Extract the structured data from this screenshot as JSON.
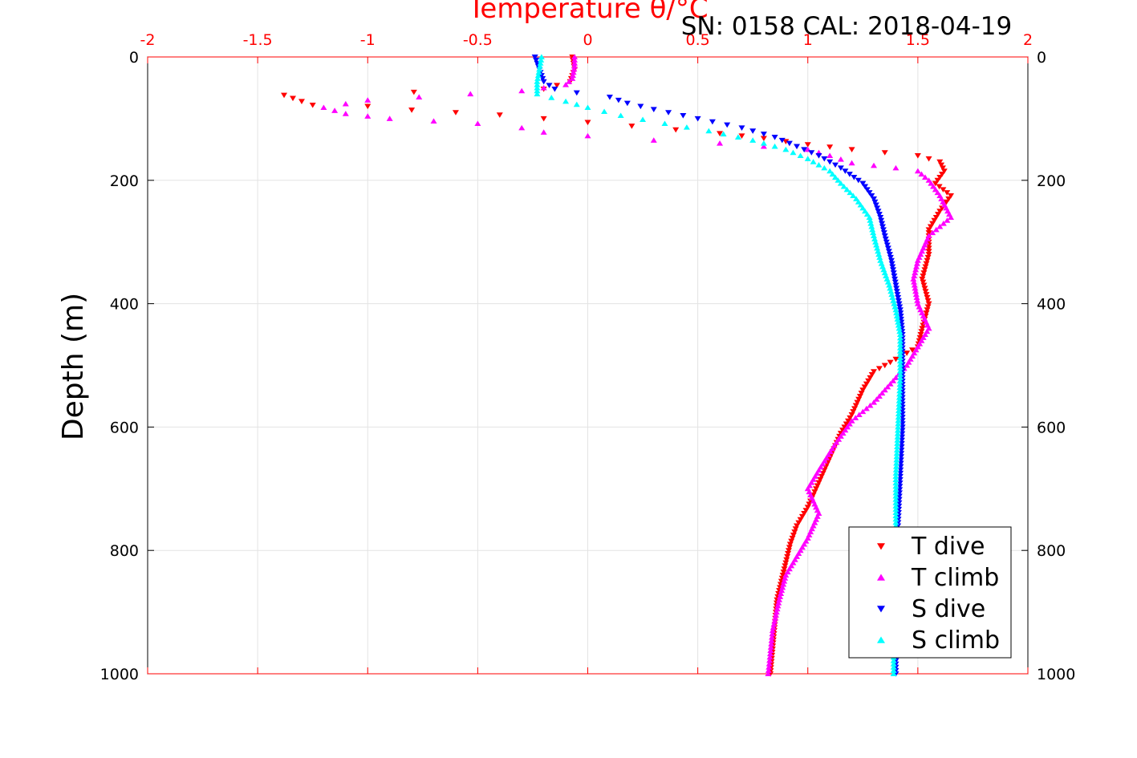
{
  "chart_data": {
    "type": "scatter",
    "title": "SN: 0158  CAL: 2018-04-19",
    "xlabel": "Temperature θ/°C",
    "ylabel": "Depth (m)",
    "xlim": [
      -2,
      2
    ],
    "ylim": [
      0,
      1000
    ],
    "y_reversed": true,
    "grid": true,
    "legend_position": "bottom-right",
    "x_ticks": [
      "-2",
      "-1.5",
      "-1",
      "-0.5",
      "0",
      "0.5",
      "1",
      "1.5",
      "2"
    ],
    "x_tick_values": [
      -2,
      -1.5,
      -1,
      -0.5,
      0,
      0.5,
      1,
      1.5,
      2
    ],
    "y_ticks": [
      "0",
      "200",
      "400",
      "600",
      "800",
      "1000"
    ],
    "y_tick_values": [
      0,
      200,
      400,
      600,
      800,
      1000
    ],
    "series": [
      {
        "name": "T dive",
        "marker": "triangle-down",
        "color": "#ff0000",
        "points": [
          [
            -0.07,
            0
          ],
          [
            -0.06,
            20
          ],
          [
            -0.08,
            40
          ],
          [
            -0.2,
            52
          ],
          [
            -1.38,
            62
          ],
          [
            -1.3,
            72
          ],
          [
            -1.25,
            78
          ],
          [
            -1.0,
            80
          ],
          [
            -0.8,
            86
          ],
          [
            -0.6,
            90
          ],
          [
            -0.4,
            94
          ],
          [
            -0.2,
            100
          ],
          [
            0.0,
            106
          ],
          [
            0.2,
            112
          ],
          [
            0.4,
            118
          ],
          [
            0.6,
            124
          ],
          [
            0.8,
            132
          ],
          [
            1.0,
            142
          ],
          [
            1.2,
            150
          ],
          [
            1.35,
            155
          ],
          [
            1.5,
            160
          ],
          [
            1.6,
            170
          ],
          [
            1.62,
            185
          ],
          [
            1.58,
            205
          ],
          [
            1.65,
            225
          ],
          [
            1.6,
            250
          ],
          [
            1.55,
            280
          ],
          [
            1.55,
            320
          ],
          [
            1.52,
            360
          ],
          [
            1.55,
            400
          ],
          [
            1.52,
            440
          ],
          [
            1.5,
            470
          ],
          [
            1.4,
            490
          ],
          [
            1.3,
            510
          ],
          [
            1.25,
            540
          ],
          [
            1.2,
            580
          ],
          [
            1.15,
            610
          ],
          [
            1.1,
            650
          ],
          [
            1.05,
            690
          ],
          [
            1.0,
            730
          ],
          [
            0.95,
            760
          ],
          [
            0.92,
            790
          ],
          [
            0.9,
            820
          ],
          [
            0.88,
            850
          ],
          [
            0.86,
            880
          ],
          [
            0.85,
            920
          ],
          [
            0.84,
            960
          ],
          [
            0.83,
            1000
          ]
        ]
      },
      {
        "name": "T climb",
        "marker": "triangle-up",
        "color": "#ff00ff",
        "points": [
          [
            -0.06,
            0
          ],
          [
            -0.06,
            15
          ],
          [
            -0.07,
            35
          ],
          [
            -0.1,
            45
          ],
          [
            -0.3,
            55
          ],
          [
            -1.0,
            70
          ],
          [
            -1.2,
            82
          ],
          [
            -1.1,
            92
          ],
          [
            -0.9,
            100
          ],
          [
            -0.5,
            108
          ],
          [
            -0.3,
            115
          ],
          [
            -0.2,
            122
          ],
          [
            0.0,
            128
          ],
          [
            0.3,
            135
          ],
          [
            0.6,
            140
          ],
          [
            0.8,
            145
          ],
          [
            1.0,
            150
          ],
          [
            1.1,
            160
          ],
          [
            1.2,
            172
          ],
          [
            1.4,
            180
          ],
          [
            1.5,
            185
          ],
          [
            1.55,
            200
          ],
          [
            1.6,
            225
          ],
          [
            1.65,
            260
          ],
          [
            1.55,
            290
          ],
          [
            1.5,
            330
          ],
          [
            1.48,
            360
          ],
          [
            1.5,
            400
          ],
          [
            1.55,
            440
          ],
          [
            1.45,
            500
          ],
          [
            1.3,
            560
          ],
          [
            1.2,
            590
          ],
          [
            1.12,
            630
          ],
          [
            1.05,
            670
          ],
          [
            1.0,
            700
          ],
          [
            1.05,
            740
          ],
          [
            1.0,
            780
          ],
          [
            0.95,
            810
          ],
          [
            0.9,
            840
          ],
          [
            0.87,
            880
          ],
          [
            0.84,
            930
          ],
          [
            0.82,
            1000
          ]
        ]
      },
      {
        "name": "S dive",
        "marker": "triangle-down",
        "color": "#0000ff",
        "points": [
          [
            -0.24,
            0
          ],
          [
            -0.22,
            20
          ],
          [
            -0.2,
            40
          ],
          [
            -0.15,
            52
          ],
          [
            -0.05,
            58
          ],
          [
            0.1,
            65
          ],
          [
            0.18,
            75
          ],
          [
            0.3,
            85
          ],
          [
            0.5,
            100
          ],
          [
            0.7,
            115
          ],
          [
            0.85,
            130
          ],
          [
            0.95,
            145
          ],
          [
            1.05,
            160
          ],
          [
            1.15,
            180
          ],
          [
            1.25,
            205
          ],
          [
            1.3,
            230
          ],
          [
            1.33,
            260
          ],
          [
            1.35,
            290
          ],
          [
            1.38,
            330
          ],
          [
            1.4,
            370
          ],
          [
            1.42,
            410
          ],
          [
            1.43,
            450
          ],
          [
            1.43,
            520
          ],
          [
            1.43,
            600
          ],
          [
            1.42,
            680
          ],
          [
            1.41,
            760
          ],
          [
            1.4,
            840
          ],
          [
            1.4,
            920
          ],
          [
            1.4,
            1000
          ]
        ]
      },
      {
        "name": "S climb",
        "marker": "triangle-up",
        "color": "#00ffff",
        "points": [
          [
            -0.21,
            0
          ],
          [
            -0.22,
            20
          ],
          [
            -0.23,
            40
          ],
          [
            -0.23,
            60
          ],
          [
            -0.1,
            72
          ],
          [
            0.0,
            82
          ],
          [
            0.15,
            95
          ],
          [
            0.35,
            108
          ],
          [
            0.55,
            120
          ],
          [
            0.75,
            135
          ],
          [
            0.9,
            150
          ],
          [
            1.0,
            165
          ],
          [
            1.1,
            185
          ],
          [
            1.15,
            205
          ],
          [
            1.22,
            230
          ],
          [
            1.28,
            260
          ],
          [
            1.3,
            290
          ],
          [
            1.33,
            330
          ],
          [
            1.37,
            370
          ],
          [
            1.4,
            410
          ],
          [
            1.42,
            450
          ],
          [
            1.42,
            520
          ],
          [
            1.41,
            600
          ],
          [
            1.4,
            680
          ],
          [
            1.4,
            760
          ],
          [
            1.39,
            840
          ],
          [
            1.39,
            920
          ],
          [
            1.39,
            1000
          ]
        ]
      }
    ]
  }
}
